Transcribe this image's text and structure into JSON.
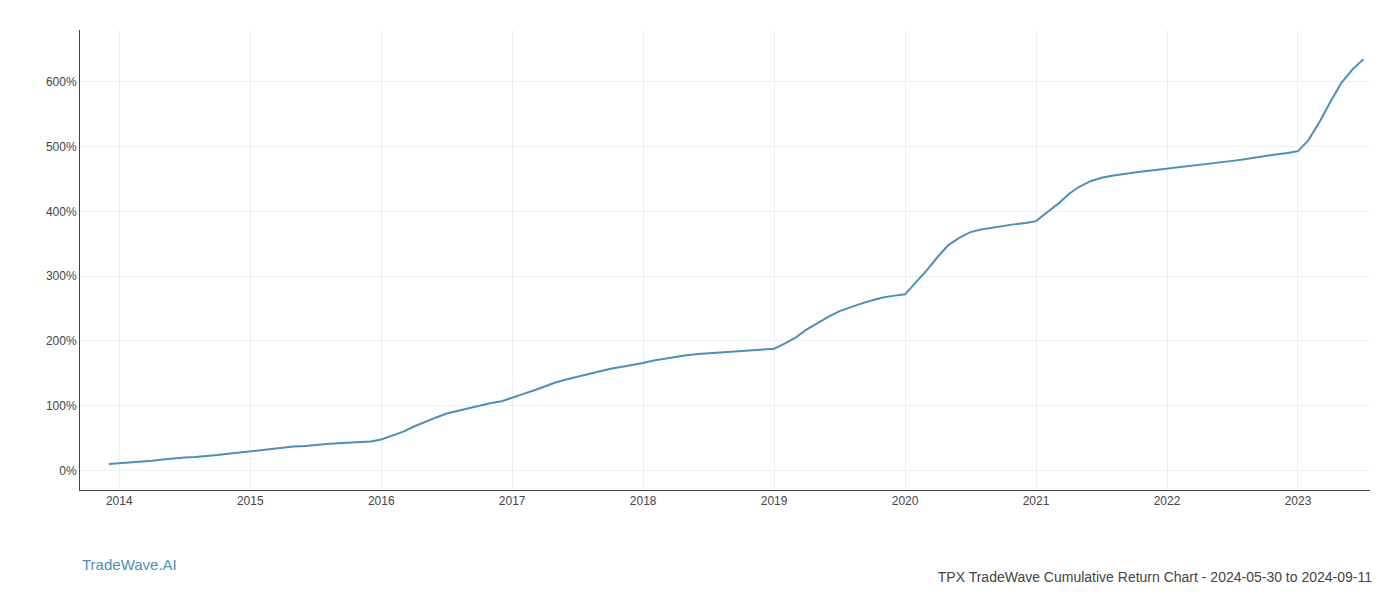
{
  "chart_data": {
    "type": "line",
    "title": "TPX TradeWave Cumulative Return Chart - 2024-05-30 to 2024-09-11",
    "annotations": [
      {
        "text": "TradeWave.AI",
        "color": "#4a90b8"
      }
    ],
    "color": "#4a90b8",
    "grid": true,
    "xlim": [
      2013.7,
      2023.55
    ],
    "ylim": [
      -30,
      680
    ],
    "xticks": [
      2014,
      2015,
      2016,
      2017,
      2018,
      2019,
      2020,
      2021,
      2022,
      2023
    ],
    "yticks": [
      {
        "value": 0,
        "label": "0%"
      },
      {
        "value": 100,
        "label": "100%"
      },
      {
        "value": 200,
        "label": "200%"
      },
      {
        "value": 300,
        "label": "300%"
      },
      {
        "value": 400,
        "label": "400%"
      },
      {
        "value": 500,
        "label": "500%"
      },
      {
        "value": 600,
        "label": "600%"
      }
    ],
    "x": [
      2013.92,
      2014.0,
      2014.08,
      2014.17,
      2014.25,
      2014.33,
      2014.42,
      2014.5,
      2014.58,
      2014.67,
      2014.75,
      2014.83,
      2014.92,
      2015.0,
      2015.08,
      2015.17,
      2015.25,
      2015.33,
      2015.42,
      2015.5,
      2015.58,
      2015.67,
      2015.75,
      2015.83,
      2015.92,
      2016.0,
      2016.08,
      2016.17,
      2016.25,
      2016.33,
      2016.42,
      2016.5,
      2016.58,
      2016.67,
      2016.75,
      2016.83,
      2016.92,
      2017.0,
      2017.08,
      2017.17,
      2017.25,
      2017.33,
      2017.42,
      2017.5,
      2017.58,
      2017.67,
      2017.75,
      2017.83,
      2017.92,
      2018.0,
      2018.08,
      2018.17,
      2018.25,
      2018.33,
      2018.42,
      2018.5,
      2018.58,
      2018.67,
      2018.75,
      2018.83,
      2018.92,
      2019.0,
      2019.08,
      2019.17,
      2019.25,
      2019.33,
      2019.42,
      2019.5,
      2019.58,
      2019.67,
      2019.75,
      2019.83,
      2019.92,
      2020.0,
      2020.08,
      2020.17,
      2020.25,
      2020.33,
      2020.42,
      2020.5,
      2020.58,
      2020.67,
      2020.75,
      2020.83,
      2020.92,
      2021.0,
      2021.08,
      2021.17,
      2021.25,
      2021.33,
      2021.42,
      2021.5,
      2021.58,
      2021.67,
      2021.75,
      2021.83,
      2021.92,
      2022.0,
      2022.08,
      2022.17,
      2022.25,
      2022.33,
      2022.42,
      2022.5,
      2022.58,
      2022.67,
      2022.75,
      2022.83,
      2022.92,
      2023.0,
      2023.08,
      2023.17,
      2023.25,
      2023.33,
      2023.42,
      2023.5
    ],
    "values": [
      10,
      11,
      12,
      13,
      15,
      17,
      18,
      20,
      21,
      22,
      24,
      26,
      28,
      30,
      32,
      34,
      36,
      37,
      38,
      40,
      41,
      42,
      43,
      44,
      45,
      48,
      54,
      60,
      68,
      75,
      82,
      88,
      92,
      96,
      100,
      104,
      107,
      112,
      118,
      124,
      130,
      136,
      141,
      145,
      149,
      153,
      157,
      160,
      163,
      166,
      170,
      173,
      176,
      178,
      180,
      181,
      182,
      183,
      184,
      185,
      186,
      188,
      196,
      206,
      218,
      228,
      238,
      246,
      252,
      258,
      263,
      267,
      270,
      272,
      290,
      310,
      330,
      348,
      360,
      368,
      372,
      375,
      378,
      380,
      382,
      385,
      398,
      412,
      427,
      438,
      447,
      452,
      455,
      458,
      460,
      462,
      464,
      466,
      468,
      470,
      472,
      474,
      476,
      478,
      480,
      483,
      486,
      488,
      490,
      493,
      510,
      540,
      570,
      598,
      620,
      635
    ]
  }
}
